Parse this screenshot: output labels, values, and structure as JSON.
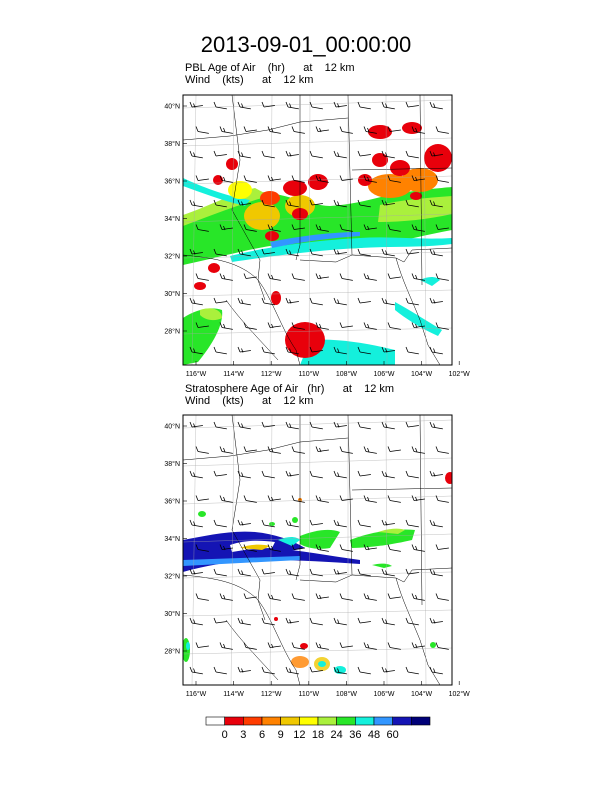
{
  "title": "2013-09-01_00:00:00",
  "panels": [
    {
      "line1": "PBL Age of Air    (hr)      at    12 km",
      "line2": "Wind    (kts)      at    12 km"
    },
    {
      "line1": "Stratosphere Age of Air   (hr)      at    12 km",
      "line2": "Wind    (kts)      at    12 km"
    }
  ],
  "lat_labels": [
    "40°N",
    "38°N",
    "36°N",
    "34°N",
    "32°N",
    "30°N",
    "28°N"
  ],
  "lon_labels": [
    "116°W",
    "114°W",
    "112°W",
    "110°W",
    "108°W",
    "106°W",
    "104°W",
    "102°W"
  ],
  "colorbar": {
    "labels": [
      "0",
      "3",
      "6",
      "9",
      "12",
      "18",
      "24",
      "36",
      "48",
      "60"
    ],
    "colors": [
      "#ffffff",
      "#e8000b",
      "#ff3c00",
      "#ff8200",
      "#f0c800",
      "#ffff00",
      "#aaf03c",
      "#28e628",
      "#14f0dc",
      "#3296ff",
      "#1414b4",
      "#000078"
    ]
  }
}
